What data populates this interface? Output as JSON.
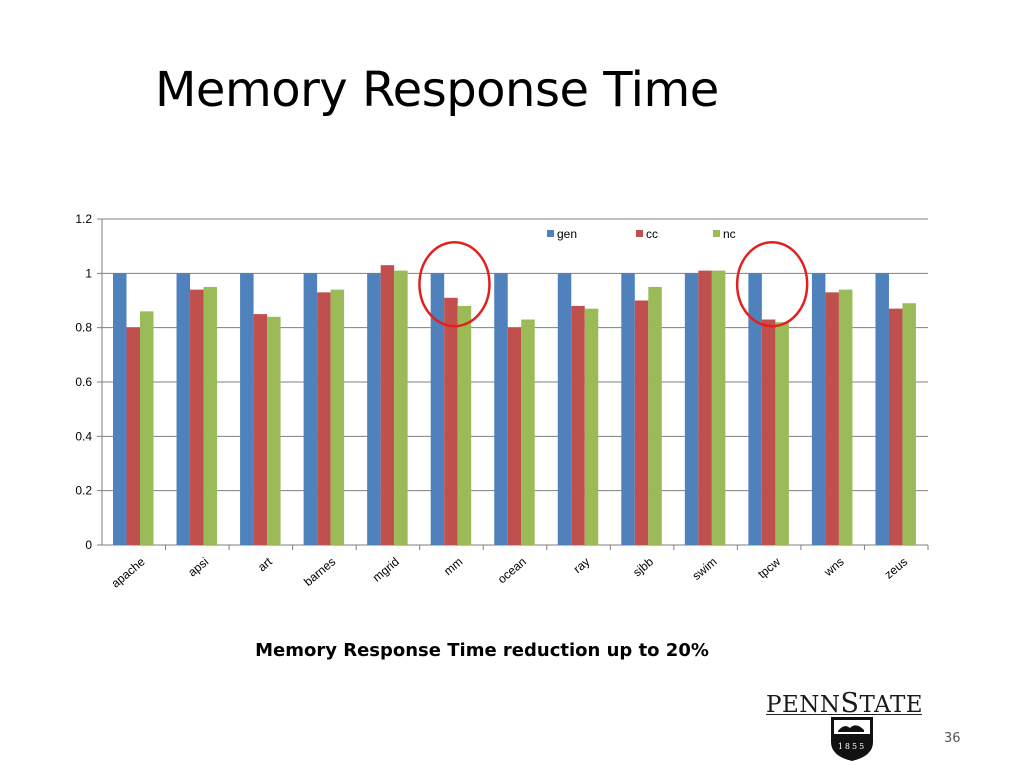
{
  "slide": {
    "title": "Memory Response Time",
    "caption": "Memory Response Time reduction up to 20%",
    "number": "36",
    "logo_text": "PENNSTATE",
    "logo_year": "1855"
  },
  "colors": {
    "gen": "#4F81BD",
    "cc": "#C0504D",
    "nc": "#9BBB59",
    "highlight_circle": "#E41F1F",
    "gridline": "#7f7f7f"
  },
  "chart_data": {
    "type": "bar",
    "categories": [
      "apache",
      "apsi",
      "art",
      "barnes",
      "mgrid",
      "mm",
      "ocean",
      "ray",
      "sjbb",
      "swim",
      "tpcw",
      "wns",
      "zeus"
    ],
    "series": [
      {
        "name": "gen",
        "values": [
          1,
          1,
          1,
          1,
          1,
          1,
          1,
          1,
          1,
          1,
          1,
          1,
          1
        ]
      },
      {
        "name": "cc",
        "values": [
          0.8,
          0.94,
          0.85,
          0.93,
          1.03,
          0.91,
          0.8,
          0.88,
          0.9,
          1.01,
          0.83,
          0.93,
          0.87
        ]
      },
      {
        "name": "nc",
        "values": [
          0.86,
          0.95,
          0.84,
          0.94,
          1.01,
          0.88,
          0.83,
          0.87,
          0.95,
          1.01,
          0.82,
          0.94,
          0.89
        ]
      }
    ],
    "ylim": [
      0,
      1.2
    ],
    "yticks": [
      "0",
      "0.2",
      "0.4",
      "0.6",
      "0.8",
      "1",
      "1.2"
    ],
    "ytick_values": [
      0,
      0.2,
      0.4,
      0.6,
      0.8,
      1,
      1.2
    ],
    "grid": true,
    "legend_position": "top-right",
    "highlighted_categories": [
      "mm",
      "tpcw"
    ]
  }
}
